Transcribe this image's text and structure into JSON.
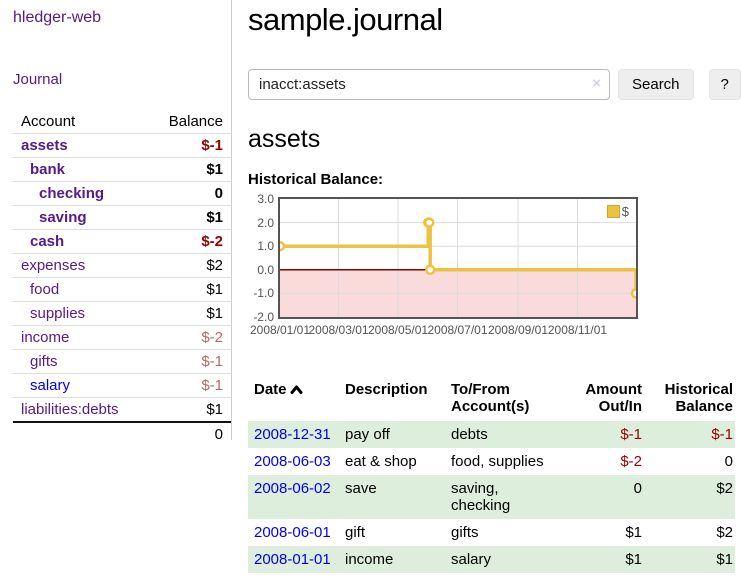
{
  "app": {
    "title": "hledger-web"
  },
  "sidebar": {
    "journal_link": "Journal",
    "headers": {
      "account": "Account",
      "balance": "Balance"
    },
    "accounts": [
      {
        "name": "assets",
        "indent": 0,
        "bold": true,
        "link_style": "purple",
        "balance": "$-1",
        "balance_style": "neg"
      },
      {
        "name": "bank",
        "indent": 1,
        "bold": true,
        "link_style": "purple",
        "balance": "$1",
        "balance_style": ""
      },
      {
        "name": "checking",
        "indent": 2,
        "bold": true,
        "link_style": "purple",
        "balance": "0",
        "balance_style": ""
      },
      {
        "name": "saving",
        "indent": 2,
        "bold": true,
        "link_style": "purple",
        "balance": "$1",
        "balance_style": ""
      },
      {
        "name": "cash",
        "indent": 1,
        "bold": true,
        "link_style": "purple",
        "balance": "$-2",
        "balance_style": "neg"
      },
      {
        "name": "expenses",
        "indent": 0,
        "bold": false,
        "link_style": "purple",
        "balance": "$2",
        "balance_style": ""
      },
      {
        "name": "food",
        "indent": 1,
        "bold": false,
        "link_style": "purple",
        "balance": "$1",
        "balance_style": ""
      },
      {
        "name": "supplies",
        "indent": 1,
        "bold": false,
        "link_style": "purple",
        "balance": "$1",
        "balance_style": ""
      },
      {
        "name": "income",
        "indent": 0,
        "bold": false,
        "link_style": "purple",
        "balance": "$-2",
        "balance_style": "negmuted"
      },
      {
        "name": "gifts",
        "indent": 1,
        "bold": false,
        "link_style": "purple",
        "balance": "$-1",
        "balance_style": "negmuted"
      },
      {
        "name": "salary",
        "indent": 1,
        "bold": false,
        "link_style": "blue",
        "balance": "$-1",
        "balance_style": "negmuted"
      },
      {
        "name": "liabilities:debts",
        "indent": 0,
        "bold": false,
        "link_style": "purple",
        "balance": "$1",
        "balance_style": ""
      }
    ],
    "total": "0"
  },
  "main": {
    "title": "sample.journal",
    "search": {
      "value": "inacct:assets",
      "clear_label": "×",
      "button_label": "Search",
      "help_label": "?"
    },
    "account_heading": "assets",
    "chart_label": "Historical Balance:"
  },
  "chart_data": {
    "type": "line",
    "title": "Historical Balance:",
    "step": true,
    "xlim": [
      "2008-01-01",
      "2008-12-31"
    ],
    "ylim": [
      -2,
      3
    ],
    "x_ticks": [
      "2008/01/01",
      "2008/03/01",
      "2008/05/01",
      "2008/07/01",
      "2008/09/01",
      "2008/11/01"
    ],
    "y_ticks": [
      "3.0",
      "2.0",
      "1.0",
      "0.0",
      "-1.0",
      "-2.0"
    ],
    "grid": true,
    "legend_position": "top-right",
    "series": [
      {
        "name": "$",
        "color": "#edc240",
        "points": [
          {
            "x": "2008-01-01",
            "y": 1
          },
          {
            "x": "2008-06-01",
            "y": 2
          },
          {
            "x": "2008-06-02",
            "y": 2
          },
          {
            "x": "2008-06-03",
            "y": 0
          },
          {
            "x": "2008-12-31",
            "y": -1
          }
        ]
      }
    ]
  },
  "register": {
    "headers": {
      "date": "Date",
      "description": "Description",
      "accounts": "To/From Account(s)",
      "amount": "Amount Out/In",
      "balance": "Historical Balance"
    },
    "rows": [
      {
        "date": "2008-12-31",
        "description": "pay off",
        "accounts": "debts",
        "amount": "$-1",
        "amount_negative": true,
        "balance": "$-1",
        "balance_negative": true
      },
      {
        "date": "2008-06-03",
        "description": "eat & shop",
        "accounts": "food, supplies",
        "amount": "$-2",
        "amount_negative": true,
        "balance": "0",
        "balance_negative": false
      },
      {
        "date": "2008-06-02",
        "description": "save",
        "accounts": "saving, checking",
        "amount": "0",
        "amount_negative": false,
        "balance": "$2",
        "balance_negative": false
      },
      {
        "date": "2008-06-01",
        "description": "gift",
        "accounts": "gifts",
        "amount": "$1",
        "amount_negative": false,
        "balance": "$2",
        "balance_negative": false
      },
      {
        "date": "2008-01-01",
        "description": "income",
        "accounts": "salary",
        "amount": "$1",
        "amount_negative": false,
        "balance": "$1",
        "balance_negative": false
      }
    ]
  },
  "colors": {
    "link_purple": "#551a8b",
    "link_blue": "#0000ee",
    "negative_strong": "#990000",
    "negative_muted": "#b36b6b",
    "row_green": "#ddeedd",
    "series_gold": "#edc240",
    "zero_line": "#8b0000",
    "negative_region": "#f9dbdb",
    "grid_line": "#dcdcdc",
    "plot_border": "#545454"
  }
}
